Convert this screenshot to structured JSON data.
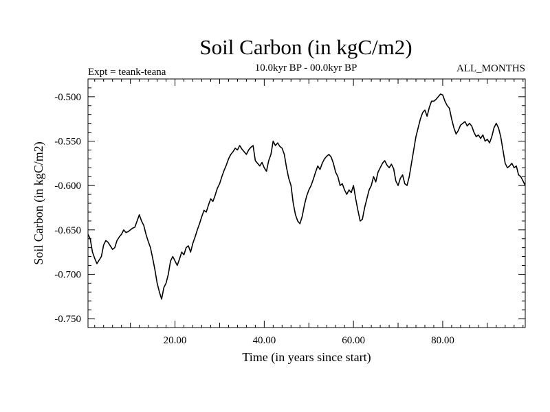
{
  "chart_data": {
    "type": "line",
    "title": "Soil Carbon (in kgC/m2)",
    "subtitle": "10.0kyr BP - 00.0kyr BP",
    "expt_label": "Expt = teank-teana",
    "months_label": "ALL_MONTHS",
    "xlabel": "Time (in years since start)",
    "ylabel": "Soil Carbon (in kgC/m2)",
    "xlim": [
      0.5,
      98.5
    ],
    "ylim": [
      -0.76,
      -0.48
    ],
    "xticks": [
      20,
      40,
      60,
      80
    ],
    "xtick_labels": [
      "20.00",
      "40.00",
      "60.00",
      "80.00"
    ],
    "yticks": [
      -0.5,
      -0.55,
      -0.6,
      -0.65,
      -0.7,
      -0.75
    ],
    "ytick_labels": [
      "-0.500",
      "-0.550",
      "-0.600",
      "-0.650",
      "-0.700",
      "-0.750"
    ],
    "series": [
      {
        "color": "#000000",
        "points": [
          [
            0.5,
            -0.655
          ],
          [
            1.0,
            -0.66
          ],
          [
            1.5,
            -0.675
          ],
          [
            2.0,
            -0.682
          ],
          [
            2.5,
            -0.688
          ],
          [
            3.0,
            -0.684
          ],
          [
            3.5,
            -0.68
          ],
          [
            4.0,
            -0.667
          ],
          [
            4.5,
            -0.662
          ],
          [
            5.0,
            -0.664
          ],
          [
            5.5,
            -0.668
          ],
          [
            6.0,
            -0.672
          ],
          [
            6.5,
            -0.67
          ],
          [
            7.0,
            -0.662
          ],
          [
            7.5,
            -0.658
          ],
          [
            8.0,
            -0.655
          ],
          [
            8.5,
            -0.65
          ],
          [
            9.0,
            -0.653
          ],
          [
            9.5,
            -0.652
          ],
          [
            10.0,
            -0.65
          ],
          [
            10.5,
            -0.648
          ],
          [
            11.0,
            -0.647
          ],
          [
            11.5,
            -0.64
          ],
          [
            12.0,
            -0.633
          ],
          [
            12.5,
            -0.64
          ],
          [
            13.0,
            -0.645
          ],
          [
            13.5,
            -0.655
          ],
          [
            14.0,
            -0.663
          ],
          [
            14.5,
            -0.67
          ],
          [
            15.0,
            -0.682
          ],
          [
            15.5,
            -0.695
          ],
          [
            16.0,
            -0.71
          ],
          [
            16.5,
            -0.72
          ],
          [
            17.0,
            -0.728
          ],
          [
            17.5,
            -0.715
          ],
          [
            18.0,
            -0.71
          ],
          [
            18.5,
            -0.7
          ],
          [
            19.0,
            -0.685
          ],
          [
            19.5,
            -0.68
          ],
          [
            20.0,
            -0.685
          ],
          [
            20.5,
            -0.69
          ],
          [
            21.0,
            -0.683
          ],
          [
            21.5,
            -0.675
          ],
          [
            22.0,
            -0.678
          ],
          [
            22.5,
            -0.67
          ],
          [
            23.0,
            -0.668
          ],
          [
            23.5,
            -0.675
          ],
          [
            24.0,
            -0.665
          ],
          [
            24.5,
            -0.658
          ],
          [
            25.0,
            -0.65
          ],
          [
            25.5,
            -0.643
          ],
          [
            26.0,
            -0.635
          ],
          [
            26.5,
            -0.628
          ],
          [
            27.0,
            -0.63
          ],
          [
            27.5,
            -0.622
          ],
          [
            28.0,
            -0.615
          ],
          [
            28.5,
            -0.618
          ],
          [
            29.0,
            -0.611
          ],
          [
            29.5,
            -0.603
          ],
          [
            30.0,
            -0.598
          ],
          [
            30.5,
            -0.59
          ],
          [
            31.0,
            -0.583
          ],
          [
            31.5,
            -0.577
          ],
          [
            32.0,
            -0.57
          ],
          [
            32.5,
            -0.565
          ],
          [
            33.0,
            -0.562
          ],
          [
            33.5,
            -0.558
          ],
          [
            34.0,
            -0.56
          ],
          [
            34.5,
            -0.555
          ],
          [
            35.0,
            -0.559
          ],
          [
            35.5,
            -0.562
          ],
          [
            36.0,
            -0.565
          ],
          [
            36.5,
            -0.56
          ],
          [
            37.0,
            -0.557
          ],
          [
            37.5,
            -0.555
          ],
          [
            38.0,
            -0.572
          ],
          [
            38.5,
            -0.575
          ],
          [
            39.0,
            -0.578
          ],
          [
            39.5,
            -0.574
          ],
          [
            40.0,
            -0.58
          ],
          [
            40.5,
            -0.584
          ],
          [
            41.0,
            -0.572
          ],
          [
            41.5,
            -0.565
          ],
          [
            42.0,
            -0.55
          ],
          [
            42.5,
            -0.555
          ],
          [
            43.0,
            -0.552
          ],
          [
            43.5,
            -0.556
          ],
          [
            44.0,
            -0.558
          ],
          [
            44.5,
            -0.565
          ],
          [
            45.0,
            -0.58
          ],
          [
            45.5,
            -0.592
          ],
          [
            46.0,
            -0.6
          ],
          [
            46.5,
            -0.62
          ],
          [
            47.0,
            -0.633
          ],
          [
            47.5,
            -0.64
          ],
          [
            48.0,
            -0.643
          ],
          [
            48.5,
            -0.635
          ],
          [
            49.0,
            -0.622
          ],
          [
            49.5,
            -0.612
          ],
          [
            50.0,
            -0.605
          ],
          [
            50.5,
            -0.6
          ],
          [
            51.0,
            -0.593
          ],
          [
            51.5,
            -0.585
          ],
          [
            52.0,
            -0.578
          ],
          [
            52.5,
            -0.582
          ],
          [
            53.0,
            -0.575
          ],
          [
            53.5,
            -0.57
          ],
          [
            54.0,
            -0.567
          ],
          [
            54.5,
            -0.565
          ],
          [
            55.0,
            -0.568
          ],
          [
            55.5,
            -0.575
          ],
          [
            56.0,
            -0.585
          ],
          [
            56.5,
            -0.59
          ],
          [
            57.0,
            -0.6
          ],
          [
            57.5,
            -0.598
          ],
          [
            58.0,
            -0.605
          ],
          [
            58.5,
            -0.61
          ],
          [
            59.0,
            -0.605
          ],
          [
            59.5,
            -0.608
          ],
          [
            60.0,
            -0.6
          ],
          [
            60.5,
            -0.615
          ],
          [
            61.0,
            -0.628
          ],
          [
            61.5,
            -0.64
          ],
          [
            62.0,
            -0.638
          ],
          [
            62.5,
            -0.625
          ],
          [
            63.0,
            -0.615
          ],
          [
            63.5,
            -0.605
          ],
          [
            64.0,
            -0.6
          ],
          [
            64.5,
            -0.59
          ],
          [
            65.0,
            -0.596
          ],
          [
            65.5,
            -0.585
          ],
          [
            66.0,
            -0.58
          ],
          [
            66.5,
            -0.575
          ],
          [
            67.0,
            -0.572
          ],
          [
            67.5,
            -0.577
          ],
          [
            68.0,
            -0.58
          ],
          [
            68.5,
            -0.576
          ],
          [
            69.0,
            -0.581
          ],
          [
            69.5,
            -0.595
          ],
          [
            70.0,
            -0.6
          ],
          [
            70.5,
            -0.592
          ],
          [
            71.0,
            -0.588
          ],
          [
            71.5,
            -0.598
          ],
          [
            72.0,
            -0.6
          ],
          [
            72.5,
            -0.59
          ],
          [
            73.0,
            -0.575
          ],
          [
            73.5,
            -0.56
          ],
          [
            74.0,
            -0.545
          ],
          [
            74.5,
            -0.535
          ],
          [
            75.0,
            -0.525
          ],
          [
            75.5,
            -0.518
          ],
          [
            76.0,
            -0.515
          ],
          [
            76.5,
            -0.522
          ],
          [
            77.0,
            -0.512
          ],
          [
            77.5,
            -0.505
          ],
          [
            78.0,
            -0.505
          ],
          [
            78.5,
            -0.503
          ],
          [
            79.0,
            -0.5
          ],
          [
            79.5,
            -0.497
          ],
          [
            80.0,
            -0.498
          ],
          [
            80.5,
            -0.505
          ],
          [
            81.0,
            -0.51
          ],
          [
            81.5,
            -0.513
          ],
          [
            82.0,
            -0.525
          ],
          [
            82.5,
            -0.535
          ],
          [
            83.0,
            -0.542
          ],
          [
            83.5,
            -0.538
          ],
          [
            84.0,
            -0.532
          ],
          [
            84.5,
            -0.53
          ],
          [
            85.0,
            -0.528
          ],
          [
            85.5,
            -0.533
          ],
          [
            86.0,
            -0.53
          ],
          [
            86.5,
            -0.533
          ],
          [
            87.0,
            -0.54
          ],
          [
            87.5,
            -0.545
          ],
          [
            88.0,
            -0.543
          ],
          [
            88.5,
            -0.547
          ],
          [
            89.0,
            -0.543
          ],
          [
            89.5,
            -0.55
          ],
          [
            90.0,
            -0.548
          ],
          [
            90.5,
            -0.552
          ],
          [
            91.0,
            -0.545
          ],
          [
            91.5,
            -0.535
          ],
          [
            92.0,
            -0.53
          ],
          [
            92.5,
            -0.535
          ],
          [
            93.0,
            -0.545
          ],
          [
            93.5,
            -0.56
          ],
          [
            94.0,
            -0.575
          ],
          [
            94.5,
            -0.58
          ],
          [
            95.0,
            -0.578
          ],
          [
            95.5,
            -0.575
          ],
          [
            96.0,
            -0.58
          ],
          [
            96.5,
            -0.578
          ],
          [
            97.0,
            -0.588
          ],
          [
            97.5,
            -0.59
          ],
          [
            98.0,
            -0.595
          ],
          [
            98.5,
            -0.6
          ]
        ]
      }
    ]
  }
}
